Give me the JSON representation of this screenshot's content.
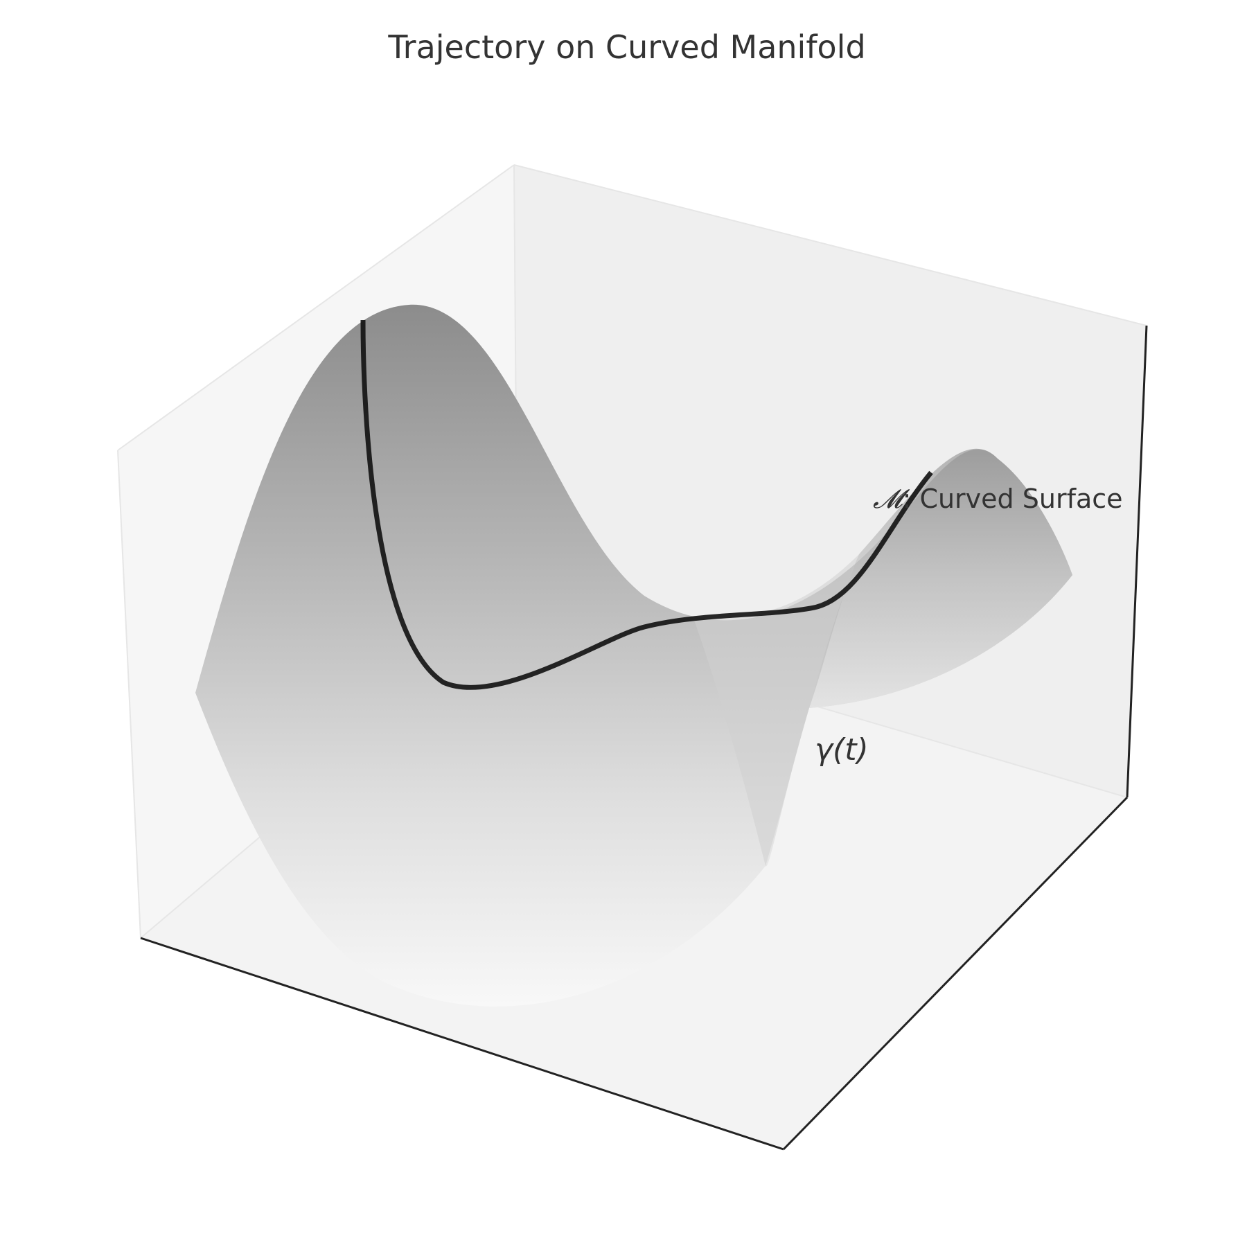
{
  "chart_data": {
    "type": "surface",
    "title": "Trajectory on Curved Manifold",
    "xlabel": "",
    "ylabel": "",
    "zlabel": "",
    "tick_labels_shown": false,
    "grid": false,
    "legend": null,
    "series": [
      {
        "kind": "surface",
        "label_symbol": "𝓜",
        "label_text": ": Curved Surface",
        "shading": "greyscale"
      },
      {
        "kind": "curve",
        "label": "γ(t)",
        "color": "#111111"
      }
    ]
  },
  "colors": {
    "pane_left": "#f6f6f6",
    "pane_back": "#efefef",
    "pane_floor": "#f3f3f3",
    "axis_line": "#222222",
    "title_text": "#333333",
    "curve": "#111111"
  }
}
